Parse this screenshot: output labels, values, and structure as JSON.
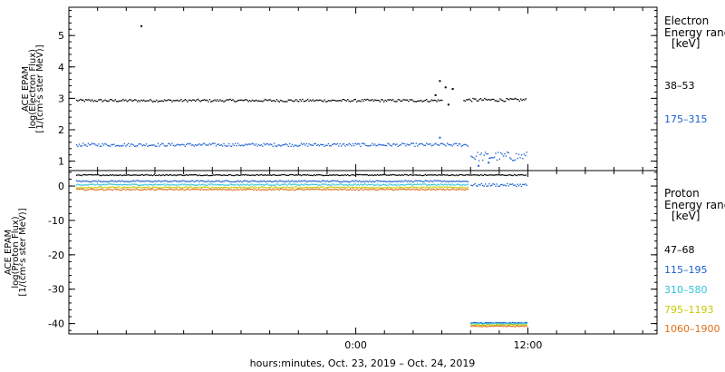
{
  "chart_data": [
    {
      "type": "scatter",
      "panel": "electron",
      "ylabel_lines": [
        "ACE EPAM",
        "log(Electron Flux)",
        "[1/(cm²s ster MeV)]"
      ],
      "ylim": [
        0.7,
        5.9
      ],
      "yticks": [
        1,
        2,
        3,
        4,
        5
      ],
      "legend_title_lines": [
        "Electron",
        "Energy range",
        "[keV]"
      ],
      "series": [
        {
          "name": "38–53",
          "color": "#000000",
          "segments": [
            {
              "x": [
                -19.5,
                6.0
              ],
              "y": 2.93,
              "jitter": 0.04
            },
            {
              "x": [
                7.5,
                11.9
              ],
              "y": 2.95,
              "jitter": 0.05
            }
          ],
          "points": [
            [
              -15.0,
              5.3
            ],
            [
              5.8,
              3.55
            ],
            [
              6.2,
              3.35
            ],
            [
              6.7,
              3.3
            ],
            [
              5.5,
              3.1
            ],
            [
              6.4,
              2.8
            ]
          ]
        },
        {
          "name": "175–315",
          "color": "#1a5fd1",
          "segments": [
            {
              "x": [
                -19.5,
                7.8
              ],
              "y": 1.52,
              "jitter": 0.05
            },
            {
              "x": [
                8.0,
                11.9
              ],
              "y": 1.15,
              "jitter": 0.15
            }
          ],
          "points": [
            [
              5.8,
              1.75
            ],
            [
              8.5,
              0.85
            ],
            [
              9.2,
              0.95
            ]
          ]
        }
      ]
    },
    {
      "type": "scatter",
      "panel": "proton",
      "ylabel_lines": [
        "ACE EPAM",
        "log(Proton Flux)",
        "[1/(cm²s ster MeV)]"
      ],
      "ylim": [
        -43,
        4.5
      ],
      "yticks": [
        0,
        -10,
        -20,
        -30,
        -40
      ],
      "legend_title_lines": [
        "Proton",
        "Energy range",
        "[keV]"
      ],
      "series": [
        {
          "name": "47–68",
          "color": "#000000",
          "segments": [
            {
              "x": [
                -19.5,
                11.9
              ],
              "y": 3.2,
              "jitter": 0.15
            }
          ]
        },
        {
          "name": "115–195",
          "color": "#1a5fd1",
          "segments": [
            {
              "x": [
                -19.5,
                7.8
              ],
              "y": 1.4,
              "jitter": 0.2
            },
            {
              "x": [
                8.0,
                11.9
              ],
              "y": 0.3,
              "jitter": 0.4
            },
            {
              "x": [
                8.0,
                11.9
              ],
              "y": -39.8,
              "jitter": 0.15
            }
          ]
        },
        {
          "name": "310–580",
          "color": "#2ec4d6",
          "segments": [
            {
              "x": [
                -19.5,
                7.8
              ],
              "y": 0.4,
              "jitter": 0.2
            },
            {
              "x": [
                8.0,
                11.9
              ],
              "y": -40.0,
              "jitter": 0.15
            }
          ]
        },
        {
          "name": "795–1193",
          "color": "#c8c800",
          "segments": [
            {
              "x": [
                -19.5,
                7.8
              ],
              "y": -0.4,
              "jitter": 0.2
            },
            {
              "x": [
                8.0,
                11.9
              ],
              "y": -40.4,
              "jitter": 0.15
            }
          ]
        },
        {
          "name": "1060–1900",
          "color": "#e0701a",
          "segments": [
            {
              "x": [
                -19.5,
                7.8
              ],
              "y": -1.0,
              "jitter": 0.2
            },
            {
              "x": [
                8.0,
                11.9
              ],
              "y": -40.8,
              "jitter": 0.15
            }
          ]
        }
      ]
    }
  ],
  "xaxis": {
    "range_hours": [
      -20.0,
      21.0
    ],
    "tick_step_hours": 2,
    "labeled_ticks": [
      {
        "x": 0,
        "label": "0:00"
      },
      {
        "x": 12,
        "label": "12:00"
      }
    ],
    "label": "hours:minutes, Oct. 23, 2019 – Oct. 24, 2019"
  }
}
